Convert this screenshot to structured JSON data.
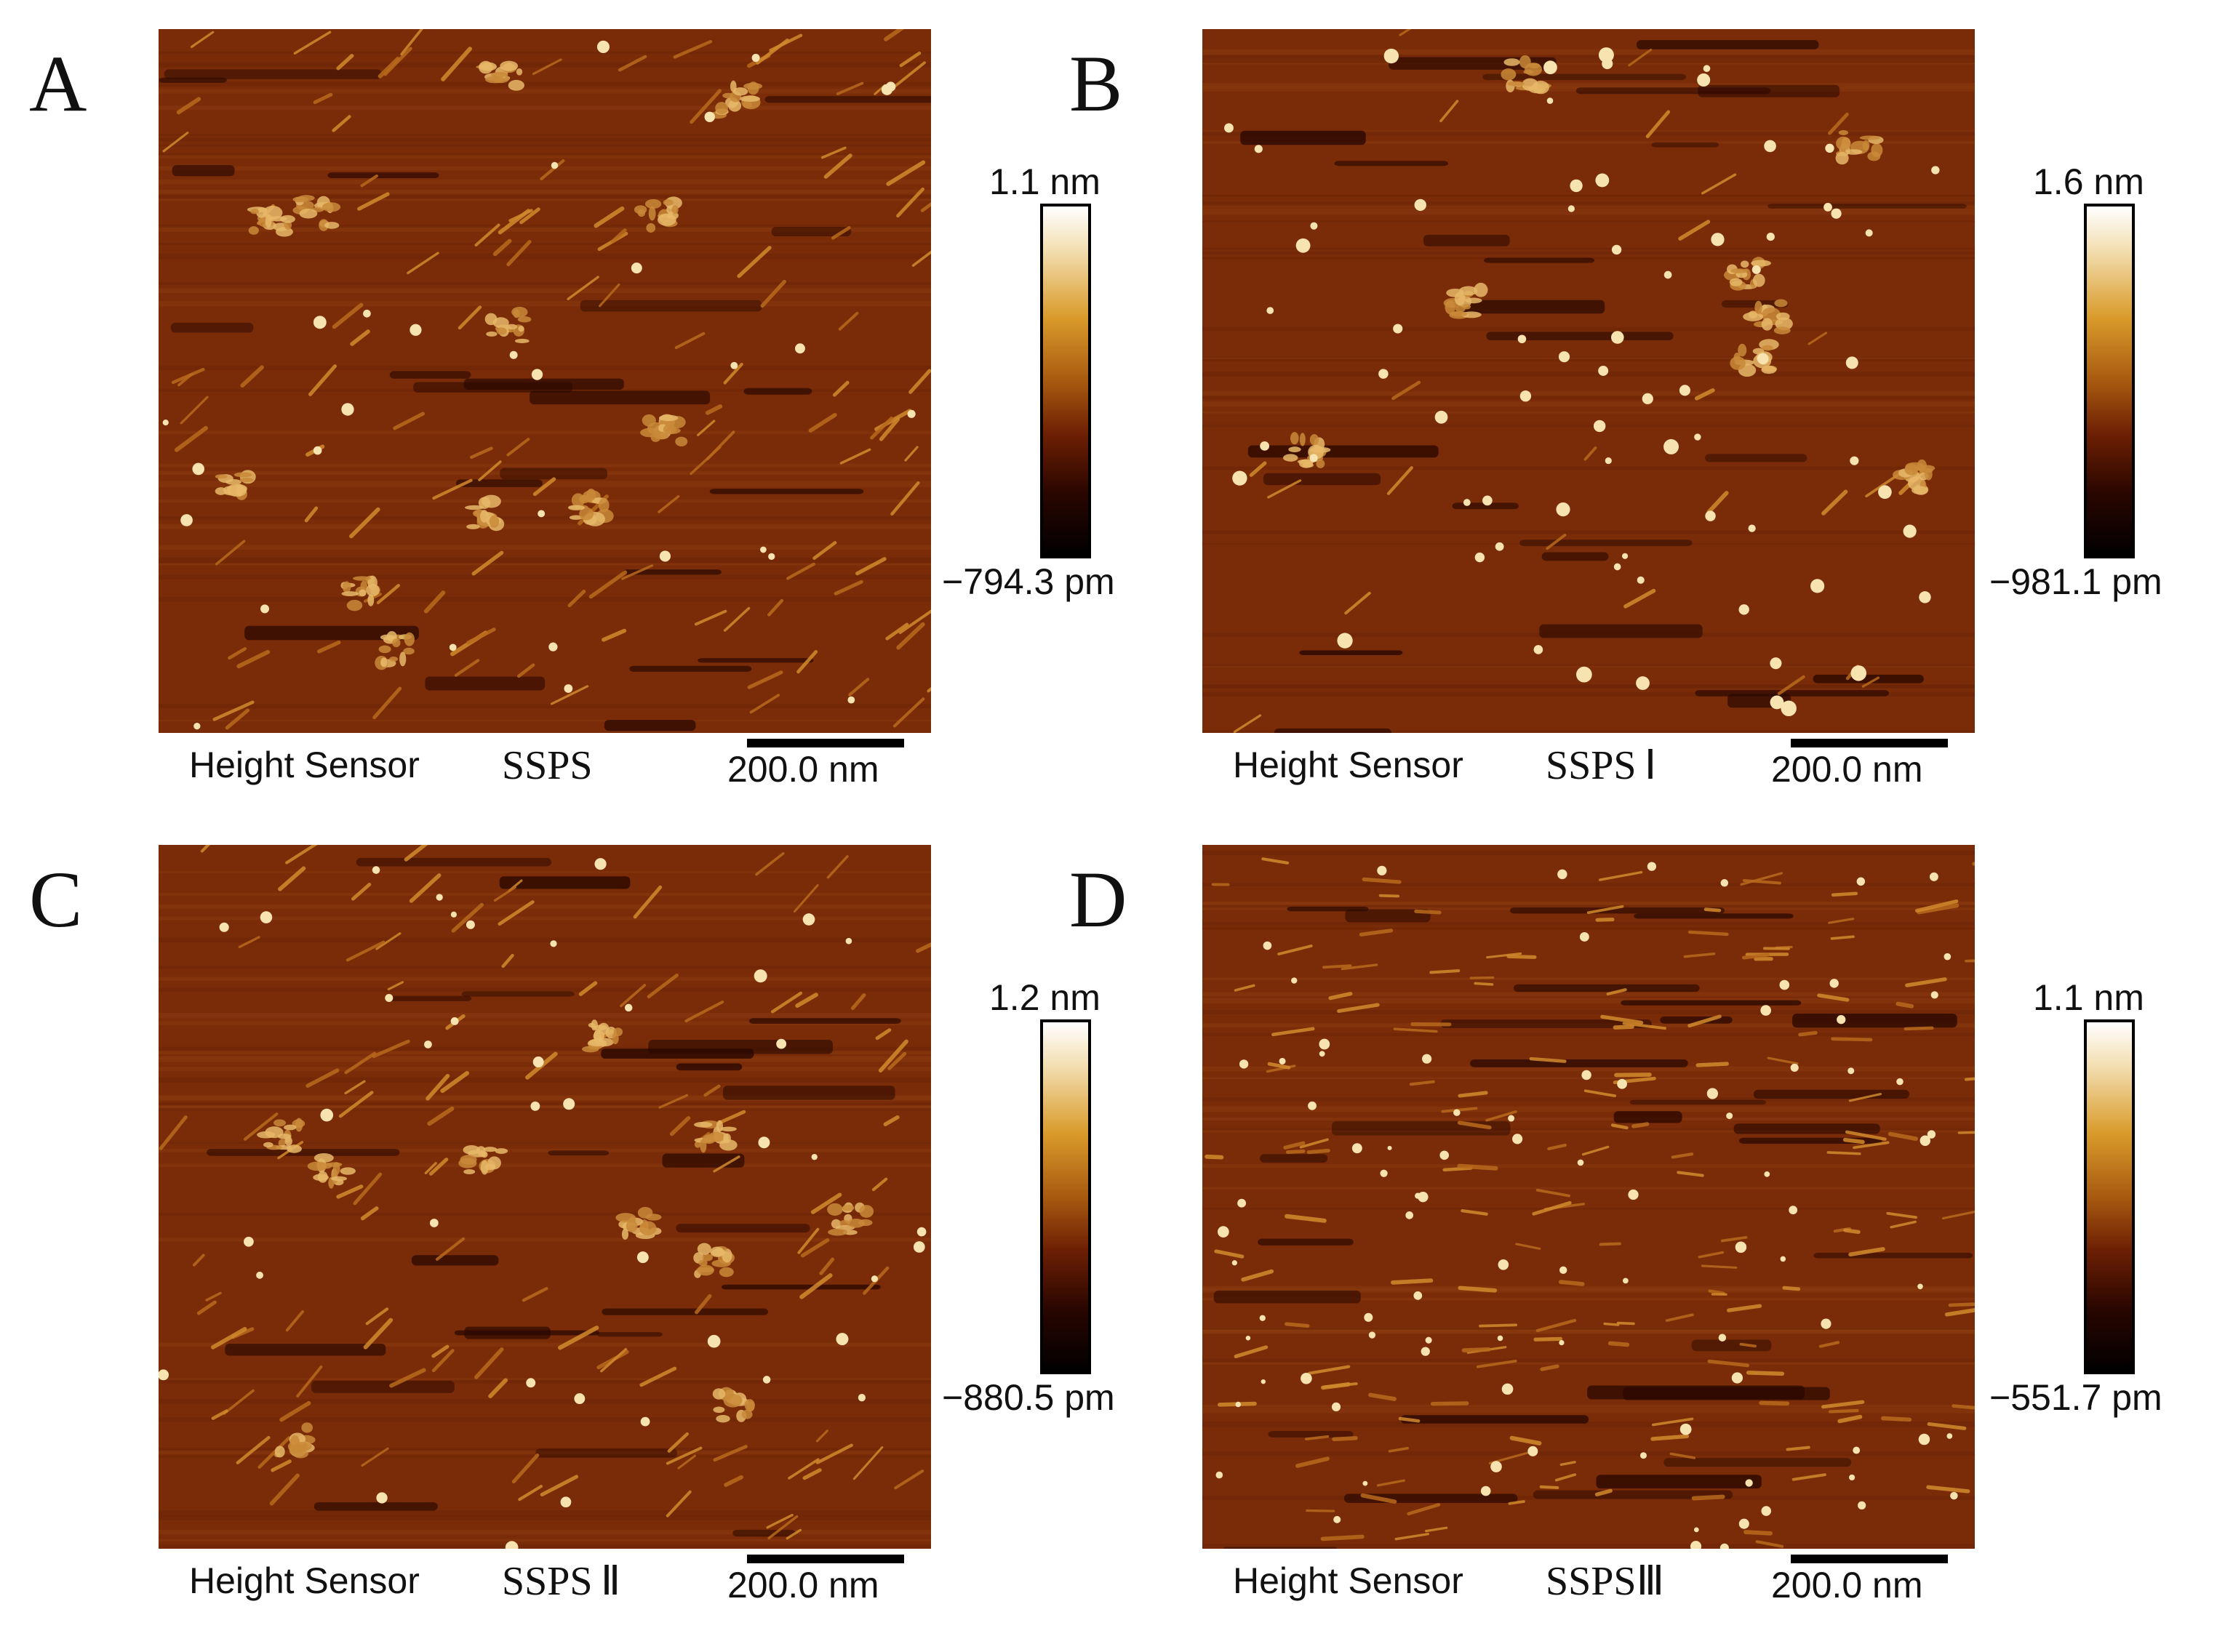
{
  "panels": [
    {
      "letter": "A",
      "sensor": "Height Sensor",
      "sample": "SSPS",
      "scale": "200.0 nm",
      "cbar_max": "1.1 nm",
      "cbar_min": "−794.3 pm"
    },
    {
      "letter": "B",
      "sensor": "Height Sensor",
      "sample": "SSPS Ⅰ",
      "scale": "200.0 nm",
      "cbar_max": "1.6 nm",
      "cbar_min": "−981.1 pm"
    },
    {
      "letter": "C",
      "sensor": "Height Sensor",
      "sample": "SSPS Ⅱ",
      "scale": "200.0 nm",
      "cbar_max": "1.2 nm",
      "cbar_min": "−880.5 pm"
    },
    {
      "letter": "D",
      "sensor": "Height Sensor",
      "sample": "SSPSⅢ",
      "scale": "200.0 nm",
      "cbar_max": "1.1 nm",
      "cbar_min": "−551.7 pm"
    }
  ],
  "colors": {
    "afm_background": "#7a2c08",
    "afm_highlight": "#f6e3b0",
    "afm_shadow": "#2a0800"
  }
}
